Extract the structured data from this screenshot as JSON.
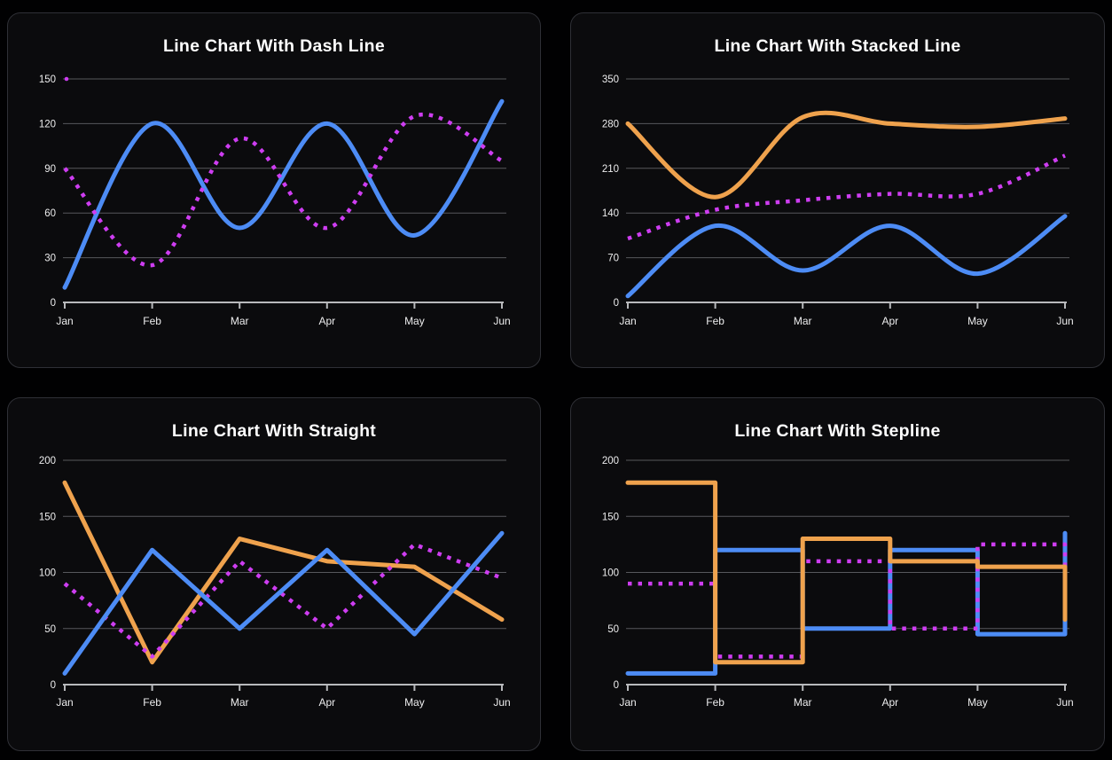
{
  "page": {
    "background": "#010102",
    "card_background": "#0b0b0d",
    "card_border": "#2f3036",
    "grid_color": "#57585c",
    "axis_color": "#b8b9bc",
    "label_color": "#ededee",
    "title_color": "#ffffff"
  },
  "chart_data": [
    {
      "type": "line",
      "curve": "smooth",
      "stacked": false,
      "title": "Line Chart With Dash Line",
      "categories": [
        "Jan",
        "Feb",
        "Mar",
        "Apr",
        "May",
        "Jun"
      ],
      "yticks": [
        0,
        30,
        60,
        90,
        120,
        150
      ],
      "ylim": [
        0,
        150
      ],
      "grid": true,
      "legend": "none",
      "series": [
        {
          "name": "blue-solid",
          "color": "#4d8cf5",
          "dash": "solid",
          "values": [
            10,
            120,
            50,
            120,
            45,
            135
          ]
        },
        {
          "name": "magenta-dotted",
          "color": "#ce3df1",
          "dash": "dotted",
          "values": [
            90,
            25,
            110,
            50,
            125,
            95
          ]
        }
      ],
      "artifact_dot": {
        "category": "Jan",
        "value": 150,
        "color": "#ce3df1"
      }
    },
    {
      "type": "line",
      "curve": "smooth",
      "stacked": true,
      "title": "Line Chart With Stacked Line",
      "categories": [
        "Jan",
        "Feb",
        "Mar",
        "Apr",
        "May",
        "Jun"
      ],
      "yticks": [
        0,
        70,
        140,
        210,
        280,
        350
      ],
      "ylim": [
        0,
        350
      ],
      "grid": true,
      "legend": "none",
      "series": [
        {
          "name": "blue-solid",
          "color": "#4d8cf5",
          "dash": "solid",
          "values": [
            10,
            120,
            50,
            120,
            45,
            135
          ]
        },
        {
          "name": "magenta-dotted",
          "color": "#ce3df1",
          "dash": "dotted",
          "values": [
            90,
            25,
            110,
            50,
            125,
            95
          ]
        },
        {
          "name": "orange-solid",
          "color": "#efa24d",
          "dash": "solid",
          "values": [
            180,
            20,
            130,
            110,
            105,
            58
          ]
        }
      ]
    },
    {
      "type": "line",
      "curve": "straight",
      "stacked": false,
      "title": "Line Chart With Straight",
      "categories": [
        "Jan",
        "Feb",
        "Mar",
        "Apr",
        "May",
        "Jun"
      ],
      "yticks": [
        0,
        50,
        100,
        150,
        200
      ],
      "ylim": [
        0,
        200
      ],
      "grid": true,
      "legend": "none",
      "series": [
        {
          "name": "orange-solid",
          "color": "#efa24d",
          "dash": "solid",
          "values": [
            180,
            20,
            130,
            110,
            105,
            58
          ]
        },
        {
          "name": "magenta-dotted",
          "color": "#ce3df1",
          "dash": "dotted",
          "values": [
            90,
            25,
            110,
            50,
            125,
            95
          ]
        },
        {
          "name": "blue-solid",
          "color": "#4d8cf5",
          "dash": "solid",
          "values": [
            10,
            120,
            50,
            120,
            45,
            135
          ]
        }
      ]
    },
    {
      "type": "line",
      "curve": "stepline",
      "stacked": false,
      "title": "Line Chart With Stepline",
      "categories": [
        "Jan",
        "Feb",
        "Mar",
        "Apr",
        "May",
        "Jun"
      ],
      "yticks": [
        0,
        50,
        100,
        150,
        200
      ],
      "ylim": [
        0,
        200
      ],
      "grid": true,
      "legend": "none",
      "series": [
        {
          "name": "blue-solid",
          "color": "#4d8cf5",
          "dash": "solid",
          "values": [
            10,
            120,
            50,
            120,
            45,
            135
          ]
        },
        {
          "name": "magenta-dotted",
          "color": "#ce3df1",
          "dash": "dotted",
          "values": [
            90,
            25,
            110,
            50,
            125,
            95
          ]
        },
        {
          "name": "orange-solid",
          "color": "#efa24d",
          "dash": "solid",
          "values": [
            180,
            20,
            130,
            110,
            105,
            58
          ]
        }
      ]
    }
  ]
}
